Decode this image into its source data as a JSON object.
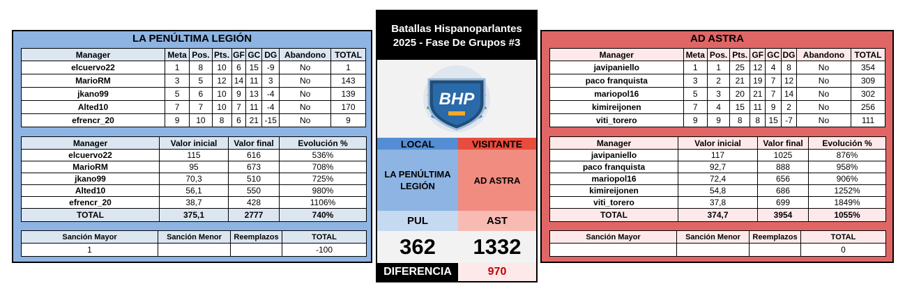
{
  "center": {
    "title_line1": "Batallas Hispanoparlantes",
    "title_line2": "2025 - Fase De Grupos #3",
    "logo_text": "BHP",
    "local_label": "LOCAL",
    "visitor_label": "VISITANTE",
    "local_team": "LA PENÚLTIMA LEGIÓN",
    "visitor_team": "AD ASTRA",
    "local_abbr": "PUL",
    "visitor_abbr": "AST",
    "local_score": "362",
    "visitor_score": "1332",
    "diff_label": "DIFERENCIA",
    "diff_value": "970"
  },
  "left": {
    "title": "LA PENÚLTIMA LEGIÓN",
    "standings_headers": [
      "Manager",
      "Meta",
      "Pos.",
      "Pts.",
      "GF",
      "GC",
      "DG",
      "Abandono",
      "TOTAL"
    ],
    "standings": [
      [
        "elcuervo22",
        "1",
        "8",
        "10",
        "6",
        "15",
        "-9",
        "No",
        "1"
      ],
      [
        "MarioRM",
        "3",
        "5",
        "12",
        "14",
        "11",
        "3",
        "No",
        "143"
      ],
      [
        "jkano99",
        "5",
        "6",
        "10",
        "9",
        "13",
        "-4",
        "No",
        "139"
      ],
      [
        "Alted10",
        "7",
        "7",
        "10",
        "7",
        "11",
        "-4",
        "No",
        "170"
      ],
      [
        "efrencr_20",
        "9",
        "10",
        "8",
        "6",
        "21",
        "-15",
        "No",
        "9"
      ]
    ],
    "value_headers": [
      "Manager",
      "Valor inicial",
      "Valor final",
      "Evolución %"
    ],
    "values": [
      [
        "elcuervo22",
        "115",
        "616",
        "536%"
      ],
      [
        "MarioRM",
        "95",
        "673",
        "708%"
      ],
      [
        "jkano99",
        "70,3",
        "510",
        "725%"
      ],
      [
        "Alted10",
        "56,1",
        "550",
        "980%"
      ],
      [
        "efrencr_20",
        "38,7",
        "428",
        "1106%"
      ]
    ],
    "values_total": [
      "TOTAL",
      "375,1",
      "2777",
      "740%"
    ],
    "sanction_headers": [
      "Sanción Mayor",
      "Sanción Menor",
      "Reemplazos",
      "TOTAL"
    ],
    "sanctions": [
      "1",
      "",
      "",
      "-100"
    ]
  },
  "right": {
    "title": "AD ASTRA",
    "standings_headers": [
      "Manager",
      "Meta",
      "Pos.",
      "Pts.",
      "GF",
      "GC",
      "DG",
      "Abandono",
      "TOTAL"
    ],
    "standings": [
      [
        "javipaniello",
        "1",
        "1",
        "25",
        "12",
        "4",
        "8",
        "No",
        "354"
      ],
      [
        "paco franquista",
        "3",
        "2",
        "21",
        "19",
        "7",
        "12",
        "No",
        "309"
      ],
      [
        "mariopol16",
        "5",
        "3",
        "20",
        "21",
        "7",
        "14",
        "No",
        "302"
      ],
      [
        "kimireijonen",
        "7",
        "4",
        "15",
        "11",
        "9",
        "2",
        "No",
        "256"
      ],
      [
        "viti_torero",
        "9",
        "9",
        "8",
        "8",
        "15",
        "-7",
        "No",
        "111"
      ]
    ],
    "value_headers": [
      "Manager",
      "Valor inicial",
      "Valor final",
      "Evolución %"
    ],
    "values": [
      [
        "javipaniello",
        "117",
        "1025",
        "876%"
      ],
      [
        "paco franquista",
        "92,7",
        "888",
        "958%"
      ],
      [
        "mariopol16",
        "72,4",
        "656",
        "906%"
      ],
      [
        "kimireijonen",
        "54,8",
        "686",
        "1252%"
      ],
      [
        "viti_torero",
        "37,8",
        "699",
        "1849%"
      ]
    ],
    "values_total": [
      "TOTAL",
      "374,7",
      "3954",
      "1055%"
    ],
    "sanction_headers": [
      "Sanción Mayor",
      "Sanción Menor",
      "Reemplazos",
      "TOTAL"
    ],
    "sanctions": [
      "",
      "",
      "",
      "0"
    ]
  },
  "colors": {
    "local_blue": "#8db4e2",
    "visitor_red": "#e06666",
    "diff_red": "#c00000"
  }
}
